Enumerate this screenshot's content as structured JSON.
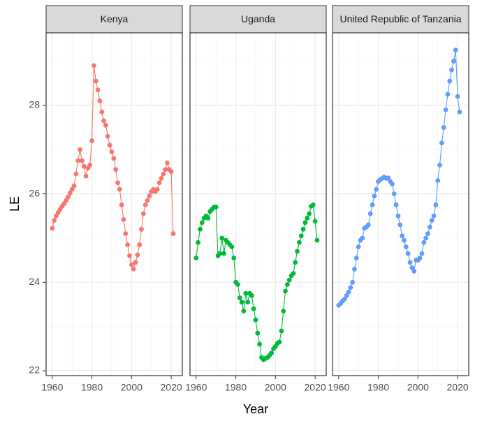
{
  "chart_data": {
    "type": "line",
    "facet": true,
    "xlabel": "Year",
    "ylabel": "LE",
    "x": [
      1960,
      1961,
      1962,
      1963,
      1964,
      1965,
      1966,
      1967,
      1968,
      1969,
      1970,
      1971,
      1972,
      1973,
      1974,
      1975,
      1976,
      1977,
      1978,
      1979,
      1980,
      1981,
      1982,
      1983,
      1984,
      1985,
      1986,
      1987,
      1988,
      1989,
      1990,
      1991,
      1992,
      1993,
      1994,
      1995,
      1996,
      1997,
      1998,
      1999,
      2000,
      2001,
      2002,
      2003,
      2004,
      2005,
      2006,
      2007,
      2008,
      2009,
      2010,
      2011,
      2012,
      2013,
      2014,
      2015,
      2016,
      2017,
      2018,
      2019,
      2020,
      2021
    ],
    "xlim": [
      1956.9,
      2025.6
    ],
    "xticks": [
      1960,
      1980,
      2000,
      2020
    ],
    "x_minor_ticks": [
      1970,
      1990,
      2010
    ],
    "ylim": [
      21.89,
      29.64
    ],
    "yticks": [
      22,
      24,
      26,
      28
    ],
    "y_minor_ticks": [
      23,
      25,
      27,
      29
    ],
    "grid": true,
    "markers": true,
    "series": [
      {
        "name": "Kenya",
        "color": "#F8766D",
        "values": [
          25.22,
          25.4,
          25.5,
          25.58,
          25.65,
          25.72,
          25.78,
          25.85,
          25.93,
          26.02,
          26.1,
          26.18,
          26.45,
          26.75,
          27.0,
          26.75,
          26.62,
          26.4,
          26.58,
          26.65,
          27.2,
          28.9,
          28.55,
          28.35,
          28.1,
          27.85,
          27.65,
          27.55,
          27.3,
          27.1,
          26.95,
          26.8,
          26.55,
          26.25,
          26.1,
          25.75,
          25.42,
          25.1,
          24.85,
          24.6,
          24.4,
          24.3,
          24.45,
          24.62,
          24.85,
          25.2,
          25.55,
          25.75,
          25.85,
          25.95,
          26.05,
          26.1,
          26.05,
          26.1,
          26.25,
          26.35,
          26.45,
          26.55,
          26.7,
          26.55,
          26.5,
          25.1
        ]
      },
      {
        "name": "Uganda",
        "color": "#00BA38",
        "values": [
          24.55,
          24.9,
          25.2,
          25.35,
          25.45,
          25.5,
          25.45,
          25.6,
          25.65,
          25.7,
          25.7,
          24.6,
          24.65,
          25.0,
          24.65,
          24.95,
          24.9,
          24.85,
          24.8,
          24.55,
          24.0,
          23.95,
          23.65,
          23.55,
          23.35,
          23.75,
          23.55,
          23.75,
          23.7,
          23.4,
          23.15,
          22.85,
          22.6,
          22.3,
          22.25,
          22.28,
          22.3,
          22.35,
          22.4,
          22.5,
          22.55,
          22.62,
          22.65,
          22.9,
          23.35,
          23.8,
          23.95,
          24.05,
          24.15,
          24.2,
          24.45,
          24.7,
          24.9,
          25.05,
          25.2,
          25.35,
          25.45,
          25.55,
          25.72,
          25.75,
          25.38,
          24.95
        ]
      },
      {
        "name": "United Republic of Tanzania",
        "color": "#619CFF",
        "values": [
          23.48,
          23.52,
          23.58,
          23.62,
          23.7,
          23.78,
          23.88,
          24.0,
          24.3,
          24.55,
          24.8,
          24.95,
          25.0,
          25.22,
          25.25,
          25.3,
          25.55,
          25.75,
          25.95,
          26.1,
          26.28,
          26.32,
          26.35,
          26.38,
          26.35,
          26.36,
          26.28,
          26.22,
          26.0,
          25.75,
          25.5,
          25.3,
          25.05,
          24.95,
          24.8,
          24.65,
          24.45,
          24.33,
          24.25,
          24.5,
          24.5,
          24.55,
          24.65,
          24.9,
          25.0,
          25.1,
          25.25,
          25.4,
          25.5,
          25.75,
          26.3,
          26.65,
          27.15,
          27.5,
          27.9,
          28.25,
          28.55,
          28.8,
          29.0,
          29.25,
          28.2,
          27.85
        ]
      }
    ]
  }
}
